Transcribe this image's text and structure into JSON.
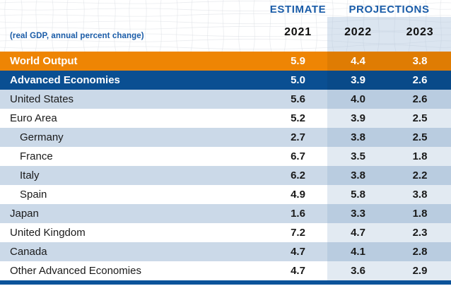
{
  "header": {
    "estimate_label": "ESTIMATE",
    "projections_label": "PROJECTIONS",
    "subtitle": "(real GDP, annual percent change)",
    "years": [
      "2021",
      "2022",
      "2023"
    ]
  },
  "chart_data": {
    "type": "table",
    "subtitle": "(real GDP, annual percent change)",
    "column_groups": [
      {
        "label": "ESTIMATE",
        "columns": [
          "2021"
        ]
      },
      {
        "label": "PROJECTIONS",
        "columns": [
          "2022",
          "2023"
        ]
      }
    ],
    "columns": [
      "2021",
      "2022",
      "2023"
    ],
    "rows": [
      {
        "label": "World Output",
        "values": [
          "5.9",
          "4.4",
          "3.8"
        ],
        "style": "world",
        "indent": false
      },
      {
        "label": "Advanced Economies",
        "values": [
          "5.0",
          "3.9",
          "2.6"
        ],
        "style": "advanced",
        "indent": false
      },
      {
        "label": "United States",
        "values": [
          "5.6",
          "4.0",
          "2.6"
        ],
        "style": "shaded",
        "indent": false
      },
      {
        "label": "Euro Area",
        "values": [
          "5.2",
          "3.9",
          "2.5"
        ],
        "style": "plain",
        "indent": false
      },
      {
        "label": "Germany",
        "values": [
          "2.7",
          "3.8",
          "2.5"
        ],
        "style": "shaded",
        "indent": true
      },
      {
        "label": "France",
        "values": [
          "6.7",
          "3.5",
          "1.8"
        ],
        "style": "plain",
        "indent": true
      },
      {
        "label": "Italy",
        "values": [
          "6.2",
          "3.8",
          "2.2"
        ],
        "style": "shaded",
        "indent": true
      },
      {
        "label": "Spain",
        "values": [
          "4.9",
          "5.8",
          "3.8"
        ],
        "style": "plain",
        "indent": true
      },
      {
        "label": "Japan",
        "values": [
          "1.6",
          "3.3",
          "1.8"
        ],
        "style": "shaded",
        "indent": false
      },
      {
        "label": "United Kingdom",
        "values": [
          "7.2",
          "4.7",
          "2.3"
        ],
        "style": "plain",
        "indent": false
      },
      {
        "label": "Canada",
        "values": [
          "4.7",
          "4.1",
          "2.8"
        ],
        "style": "shaded",
        "indent": false
      },
      {
        "label": "Other Advanced Economies",
        "values": [
          "4.7",
          "3.6",
          "2.9"
        ],
        "style": "plain",
        "indent": false
      }
    ]
  },
  "colors": {
    "accent_text_blue": "#1A5CA8",
    "orange_row": "#EE8504",
    "orange_row_proj": "#DF7C03",
    "navy_row": "#0A4F92",
    "navy_row_proj": "#094A89",
    "shaded_row": "#CBD9E8",
    "shaded_row_proj": "#B9CCE0",
    "plain_row_proj": "#E2EAF2",
    "header_band": "rgba(175,198,221,0.45)",
    "bottom_bar": "#0C539A"
  }
}
